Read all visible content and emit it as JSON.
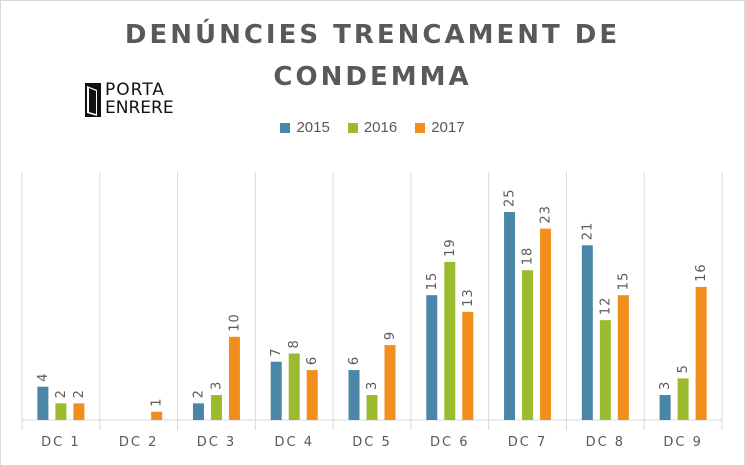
{
  "title_line1": "DENÚNCIES TRENCAMENT DE",
  "title_line2": "CONDEMMA",
  "logo": {
    "line1": "PORTA",
    "line2": "ENRERE"
  },
  "chart_data": {
    "type": "bar",
    "title": "DENÚNCIES TRENCAMENT DE CONDEMMA",
    "categories": [
      "DC 1",
      "DC 2",
      "DC 3",
      "DC 4",
      "DC 5",
      "DC 6",
      "DC 7",
      "DC 8",
      "DC 9"
    ],
    "series": [
      {
        "name": "2015",
        "color": "#4a86a8",
        "values": [
          4,
          null,
          2,
          7,
          6,
          15,
          25,
          21,
          3
        ]
      },
      {
        "name": "2016",
        "color": "#9bbb2f",
        "values": [
          2,
          null,
          3,
          8,
          3,
          19,
          18,
          12,
          5
        ]
      },
      {
        "name": "2017",
        "color": "#f28e1c",
        "values": [
          2,
          1,
          10,
          6,
          9,
          13,
          23,
          15,
          16
        ]
      }
    ],
    "ylim": [
      0,
      25
    ],
    "grid": "vertical category separators",
    "legend": "top-center",
    "data_labels": "rotated, above bars"
  }
}
